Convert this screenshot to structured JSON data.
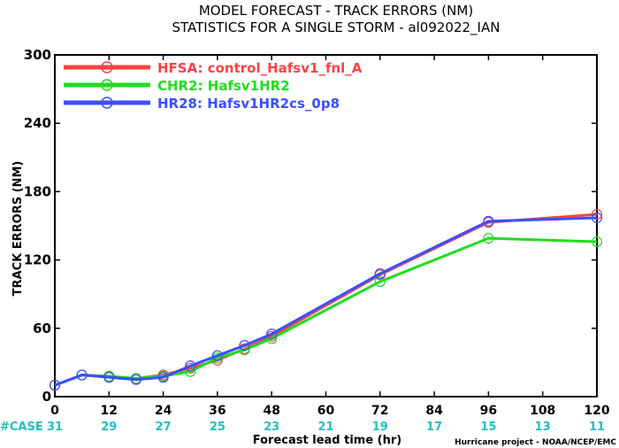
{
  "chart_data": {
    "type": "line",
    "title": "MODEL FORECAST - TRACK ERRORS (NM)",
    "subtitle": "STATISTICS FOR A SINGLE STORM - al092022_IAN",
    "xlabel": "Forecast lead time (hr)",
    "ylabel": "TRACK ERRORS (NM)",
    "xlim": [
      0,
      120
    ],
    "ylim": [
      0,
      300
    ],
    "x_ticks": [
      0,
      12,
      24,
      36,
      48,
      60,
      72,
      84,
      96,
      108,
      120
    ],
    "y_ticks": [
      0,
      60,
      120,
      180,
      240,
      300
    ],
    "case_label": "#CASE",
    "case_counts": [
      {
        "x": 0,
        "n": "31"
      },
      {
        "x": 12,
        "n": "29"
      },
      {
        "x": 24,
        "n": "27"
      },
      {
        "x": 36,
        "n": "25"
      },
      {
        "x": 48,
        "n": "23"
      },
      {
        "x": 60,
        "n": "21"
      },
      {
        "x": 72,
        "n": "19"
      },
      {
        "x": 84,
        "n": "17"
      },
      {
        "x": 96,
        "n": "15"
      },
      {
        "x": 108,
        "n": "13"
      },
      {
        "x": 120,
        "n": "11"
      }
    ],
    "legend_position": "top-left",
    "grid": false,
    "series": [
      {
        "name": "HFSA: control_Hafsv1_fnl_A",
        "color": "#ff4040",
        "x": [
          0,
          6,
          12,
          18,
          24,
          30,
          36,
          42,
          48,
          72,
          96,
          120
        ],
        "y": [
          10,
          19,
          17,
          16,
          19,
          25,
          32,
          42,
          53,
          107,
          153,
          160
        ]
      },
      {
        "name": "CHR2: Hafsv1HR2",
        "color": "#20dd20",
        "x": [
          0,
          6,
          12,
          18,
          24,
          30,
          36,
          42,
          48,
          72,
          96,
          120
        ],
        "y": [
          10,
          19,
          18,
          16,
          18,
          22,
          34,
          41,
          51,
          101,
          139,
          136
        ]
      },
      {
        "name": "HR28: Hafsv1HR2cs_0p8",
        "color": "#3a50ff",
        "x": [
          0,
          6,
          12,
          18,
          24,
          30,
          36,
          42,
          48,
          72,
          96,
          120
        ],
        "y": [
          10,
          19,
          17,
          15,
          17,
          27,
          36,
          45,
          55,
          108,
          154,
          157
        ]
      }
    ],
    "credit": "Hurricane project - NOAA/NCEP/EMC"
  },
  "colors": {
    "case_label": "#20c0c0",
    "case_counts": "#20c0c0"
  }
}
